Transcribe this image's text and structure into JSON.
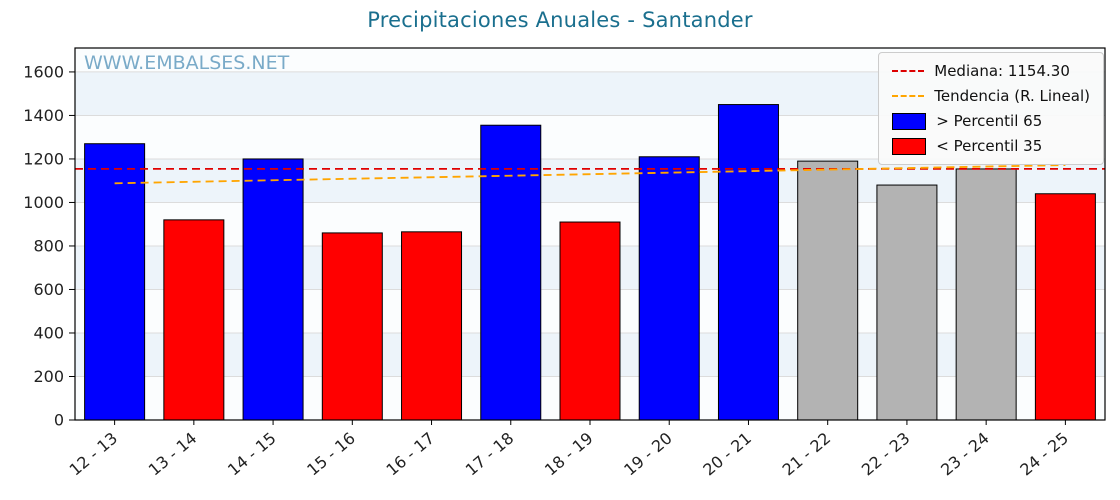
{
  "title": "Precipitaciones Anuales - Santander",
  "watermark": "WWW.EMBALSES.NET",
  "legend": {
    "median_label": "Mediana: 1154.30",
    "trend_label": "Tendencia (R. Lineal)",
    "above_label": "> Percentil 65",
    "below_label": "< Percentil 35"
  },
  "colors": {
    "above": "#0000ff",
    "below": "#ff0000",
    "mid": "#b3b3b3",
    "median": "#e00000",
    "trend": "#ffa500",
    "grid": "#dcdcdc",
    "band": "#edf4fa",
    "plot_bg": "#fbfdfe",
    "axis": "#000000",
    "tick_text": "#222222",
    "title": "#1a6f8e",
    "watermark": "#79aac8"
  },
  "chart_data": {
    "type": "bar",
    "title": "Precipitaciones Anuales - Santander",
    "xlabel": "",
    "ylabel": "",
    "categories": [
      "12 - 13",
      "13 - 14",
      "14 - 15",
      "15 - 16",
      "16 - 17",
      "17 - 18",
      "18 - 19",
      "19 - 20",
      "20 - 21",
      "21 - 22",
      "22 - 23",
      "23 - 24",
      "24 - 25"
    ],
    "values": [
      1270,
      920,
      1200,
      860,
      865,
      1355,
      910,
      1210,
      1450,
      1190,
      1080,
      1154,
      1040
    ],
    "classes": [
      "above",
      "below",
      "above",
      "below",
      "below",
      "above",
      "below",
      "above",
      "above",
      "mid",
      "mid",
      "mid",
      "below"
    ],
    "median": 1154.3,
    "trend": {
      "start": 1088,
      "end": 1172
    },
    "ylim": [
      0,
      1710
    ],
    "yticks": [
      0,
      200,
      400,
      600,
      800,
      1000,
      1200,
      1400,
      1600
    ],
    "grid": true,
    "legend_position": "upper right"
  }
}
